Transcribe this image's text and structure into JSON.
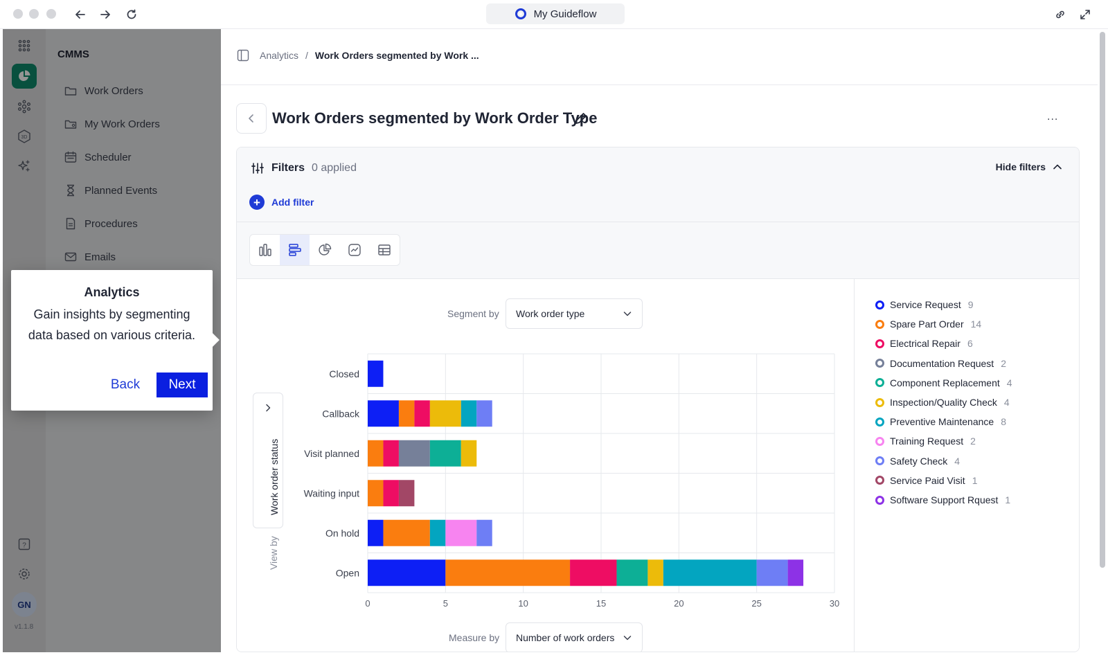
{
  "window": {
    "title": "My Guideflow"
  },
  "rail": {
    "avatar": "GN",
    "version": "v1.1.8"
  },
  "sidebar": {
    "title": "CMMS",
    "items": [
      {
        "label": "Work Orders",
        "icon": "folder-icon"
      },
      {
        "label": "My Work Orders",
        "icon": "folder-user-icon"
      },
      {
        "label": "Scheduler",
        "icon": "calendar-icon"
      },
      {
        "label": "Planned Events",
        "icon": "hourglass-icon"
      },
      {
        "label": "Procedures",
        "icon": "document-icon"
      },
      {
        "label": "Emails",
        "icon": "mail-icon"
      }
    ]
  },
  "tooltip": {
    "title": "Analytics",
    "body": "Gain insights by segmenting data based on various criteria.",
    "back_label": "Back",
    "next_label": "Next"
  },
  "breadcrumb": {
    "root": "Analytics",
    "separator": "/",
    "current": "Work Orders segmented by Work ..."
  },
  "page": {
    "title": "Work Orders segmented by Work Order Type",
    "more": "..."
  },
  "filters": {
    "label": "Filters",
    "applied": "0 applied",
    "hide_label": "Hide filters",
    "add_label": "Add filter"
  },
  "controls": {
    "segment_label": "Segment by",
    "segment_value": "Work order type",
    "view_by_label": "View by",
    "view_by_value": "Work order status",
    "measure_label": "Measure by",
    "measure_value": "Number of work orders"
  },
  "colors": {
    "accent": "#1f3bd6",
    "next_button": "#0a1fe0"
  },
  "chart_data": {
    "type": "bar",
    "orientation": "horizontal",
    "stacked": true,
    "categories": [
      "Closed",
      "Callback",
      "Visit planned",
      "Waiting input",
      "On hold",
      "Open"
    ],
    "xlim": [
      0,
      30
    ],
    "xticks": [
      0,
      5,
      10,
      15,
      20,
      25,
      30
    ],
    "grid": true,
    "series": [
      {
        "name": "Service Request",
        "color": "#0d1ff5",
        "total": 9,
        "values": [
          1,
          2,
          0,
          0,
          1,
          5
        ]
      },
      {
        "name": "Spare Part Order",
        "color": "#fa7d0f",
        "total": 14,
        "values": [
          0,
          1,
          1,
          1,
          3,
          8
        ]
      },
      {
        "name": "Electrical Repair",
        "color": "#ee0d63",
        "total": 6,
        "values": [
          0,
          1,
          1,
          1,
          0,
          3
        ]
      },
      {
        "name": "Documentation Request",
        "color": "#768099",
        "total": 2,
        "values": [
          0,
          0,
          2,
          0,
          0,
          0
        ]
      },
      {
        "name": "Component Replacement",
        "color": "#0daf96",
        "total": 4,
        "values": [
          0,
          0,
          2,
          0,
          0,
          2
        ]
      },
      {
        "name": "Inspection/Quality Check",
        "color": "#ecbb0a",
        "total": 4,
        "values": [
          0,
          2,
          1,
          0,
          0,
          1
        ]
      },
      {
        "name": "Preventive Maintenance",
        "color": "#03a5c0",
        "total": 8,
        "values": [
          0,
          1,
          0,
          0,
          1,
          6
        ]
      },
      {
        "name": "Training Request",
        "color": "#f784f0",
        "total": 2,
        "values": [
          0,
          0,
          0,
          0,
          2,
          0
        ]
      },
      {
        "name": "Safety Check",
        "color": "#6e7ef5",
        "total": 4,
        "values": [
          0,
          1,
          0,
          0,
          1,
          2
        ]
      },
      {
        "name": "Service Paid Visit",
        "color": "#a24766",
        "total": 1,
        "values": [
          0,
          0,
          0,
          1,
          0,
          0
        ]
      },
      {
        "name": "Software Support Rquest",
        "color": "#8d32e6",
        "total": 1,
        "values": [
          0,
          0,
          0,
          0,
          0,
          1
        ]
      }
    ]
  }
}
